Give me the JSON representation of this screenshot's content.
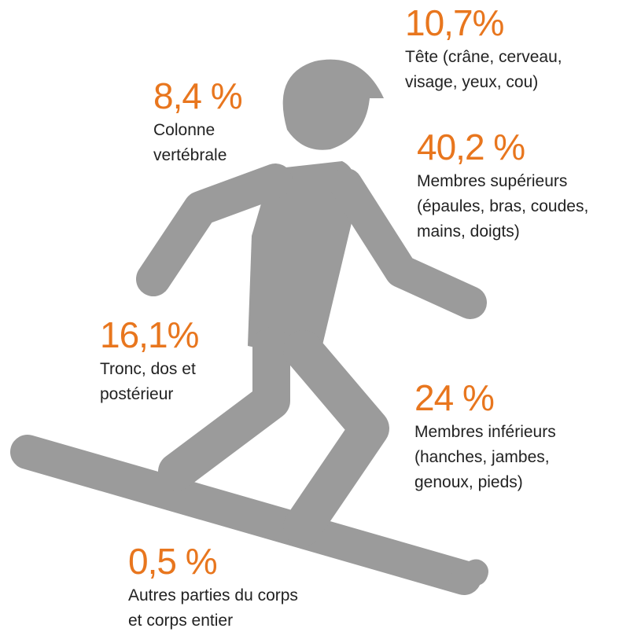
{
  "items": [
    {
      "percent": "10,7%",
      "lines": [
        "Tête (crâne, cerveau,",
        "visage, yeux, cou)"
      ]
    },
    {
      "percent": "8,4 %",
      "lines": [
        "Colonne",
        "vertébrale"
      ]
    },
    {
      "percent": "40,2 %",
      "lines": [
        "Membres supérieurs",
        "(épaules, bras, coudes,",
        "mains, doigts)"
      ]
    },
    {
      "percent": "16,1%",
      "lines": [
        "Tronc, dos et",
        "postérieur"
      ]
    },
    {
      "percent": "24 %",
      "lines": [
        "Membres inférieurs",
        "(hanches, jambes,",
        "genoux, pieds)"
      ]
    },
    {
      "percent": "0,5 %",
      "lines": [
        "Autres parties du corps",
        "et corps entier"
      ]
    }
  ]
}
